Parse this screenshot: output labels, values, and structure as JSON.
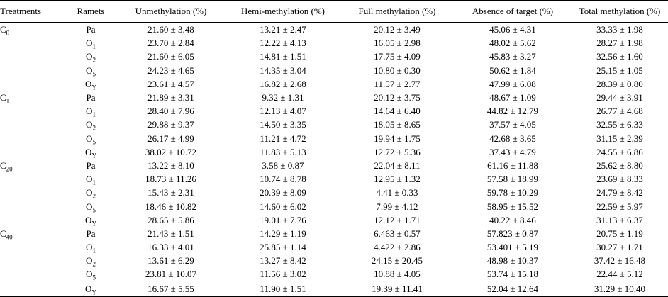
{
  "columns": [
    "Treatments",
    "Ramets",
    "Unmethylation (%)",
    "Hemi-methylation (%)",
    "Full methylation (%)",
    "Absence of target (%)",
    "Total methylation (%)"
  ],
  "groups": [
    {
      "treatment": {
        "base": "C",
        "sub": "0"
      },
      "rows": [
        {
          "ramet": {
            "base": "Pa",
            "sub": ""
          },
          "values": [
            "21.60 ± 3.48",
            "13.21 ± 2.47",
            "20.12 ± 3.49",
            "45.06 ± 4.31",
            "33.33 ± 1.98"
          ]
        },
        {
          "ramet": {
            "base": "O",
            "sub": "1"
          },
          "values": [
            "23.70 ± 2.84",
            "12.22 ± 4.13",
            "16.05 ± 2.98",
            "48.02 ± 5.62",
            "28.27 ± 1.98"
          ]
        },
        {
          "ramet": {
            "base": "O",
            "sub": "2"
          },
          "values": [
            "21.60 ± 6.05",
            "14.81 ± 1.51",
            "17.75 ± 4.09",
            "45.83 ± 3.27",
            "32.56 ± 1.60"
          ]
        },
        {
          "ramet": {
            "base": "O",
            "sub": "5"
          },
          "values": [
            "24.23 ± 4.65",
            "14.35 ± 3.04",
            "10.80 ± 0.30",
            "50.62 ± 1.84",
            "25.15 ± 1.05"
          ]
        },
        {
          "ramet": {
            "base": "O",
            "sub": "Y"
          },
          "values": [
            "23.61 ± 4.57",
            "16.82 ± 2.68",
            "11.57 ± 2.77",
            "47.99 ± 6.08",
            "28.39 ± 0.80"
          ]
        }
      ]
    },
    {
      "treatment": {
        "base": "C",
        "sub": "1"
      },
      "rows": [
        {
          "ramet": {
            "base": "Pa",
            "sub": ""
          },
          "values": [
            "21.89 ± 3.31",
            "9.32 ± 1.31",
            "20.12 ± 3.75",
            "48.67 ± 1.09",
            "29.44 ± 3.91"
          ]
        },
        {
          "ramet": {
            "base": "O",
            "sub": "1"
          },
          "values": [
            "28.40 ± 7.96",
            "12.13 ± 4.07",
            "14.64 ± 6.40",
            "44.82 ± 12.79",
            "26.77 ± 4.68"
          ]
        },
        {
          "ramet": {
            "base": "O",
            "sub": "2"
          },
          "values": [
            "29.88 ± 9.37",
            "14.50 ± 3.35",
            "18.05 ± 8.65",
            "37.57 ± 4.05",
            "32.55 ± 6.33"
          ]
        },
        {
          "ramet": {
            "base": "O",
            "sub": "5"
          },
          "values": [
            "26.17 ± 4.99",
            "11.21 ± 4.72",
            "19.94 ± 1.75",
            "42.68 ± 3.65",
            "31.15 ± 2.39"
          ]
        },
        {
          "ramet": {
            "base": "O",
            "sub": "Y"
          },
          "values": [
            "38.02 ± 10.72",
            "11.83 ± 5.13",
            "12.72 ± 5.36",
            "37.43 ± 4.79",
            "24.55 ± 6.86"
          ]
        }
      ]
    },
    {
      "treatment": {
        "base": "C",
        "sub": "20"
      },
      "rows": [
        {
          "ramet": {
            "base": "Pa",
            "sub": ""
          },
          "values": [
            "13.22 ± 8.10",
            "3.58 ± 0.87",
            "22.04 ± 8.11",
            "61.16 ± 11.88",
            "25.62 ± 8.80"
          ]
        },
        {
          "ramet": {
            "base": "O",
            "sub": "1"
          },
          "values": [
            "18.73 ± 11.26",
            "10.74 ± 8.78",
            "12.95 ± 1.32",
            "57.58 ± 18.99",
            "23.69 ± 8.33"
          ]
        },
        {
          "ramet": {
            "base": "O",
            "sub": "2"
          },
          "values": [
            "15.43 ± 2.31",
            "20.39 ± 8.09",
            "4.41 ± 0.33",
            "59.78 ± 10.29",
            "24.79 ± 8.42"
          ]
        },
        {
          "ramet": {
            "base": "O",
            "sub": "5"
          },
          "values": [
            "18.46 ± 10.82",
            "14.60 ± 6.02",
            "7.99 ± 4.12",
            "58.95 ± 15.52",
            "22.59 ± 5.97"
          ]
        },
        {
          "ramet": {
            "base": "O",
            "sub": "Y"
          },
          "values": [
            "28.65 ± 5.86",
            "19.01 ± 7.76",
            "12.12 ± 1.71",
            "40.22 ± 8.46",
            "31.13 ± 6.37"
          ]
        }
      ]
    },
    {
      "treatment": {
        "base": "C",
        "sub": "40"
      },
      "rows": [
        {
          "ramet": {
            "base": "Pa",
            "sub": ""
          },
          "values": [
            "21.43 ± 1.51",
            "14.29 ± 1.19",
            "6.463 ± 0.57",
            "57.823 ± 0.87",
            "20.75 ± 1.19"
          ]
        },
        {
          "ramet": {
            "base": "O",
            "sub": "1"
          },
          "values": [
            "16.33 ± 4.01",
            "25.85 ± 1.14",
            "4.422 ± 2.86",
            "53.401 ± 5.19",
            "30.27 ± 1.71"
          ]
        },
        {
          "ramet": {
            "base": "O",
            "sub": "2"
          },
          "values": [
            "13.61 ± 6.29",
            "13.27 ± 8.42",
            "24.15 ± 20.45",
            "48.98 ± 10.37",
            "37.42 ± 16.48"
          ]
        },
        {
          "ramet": {
            "base": "O",
            "sub": "5"
          },
          "values": [
            "23.81 ± 10.07",
            "11.56 ± 3.02",
            "10.88 ± 4.05",
            "53.74 ± 15.18",
            "22.44 ± 5.12"
          ]
        },
        {
          "ramet": {
            "base": "O",
            "sub": "Y"
          },
          "values": [
            "16.67 ± 5.55",
            "11.90 ± 1.51",
            "19.39 ± 11.41",
            "52.04 ± 12.64",
            "31.29 ± 10.40"
          ]
        }
      ]
    }
  ]
}
